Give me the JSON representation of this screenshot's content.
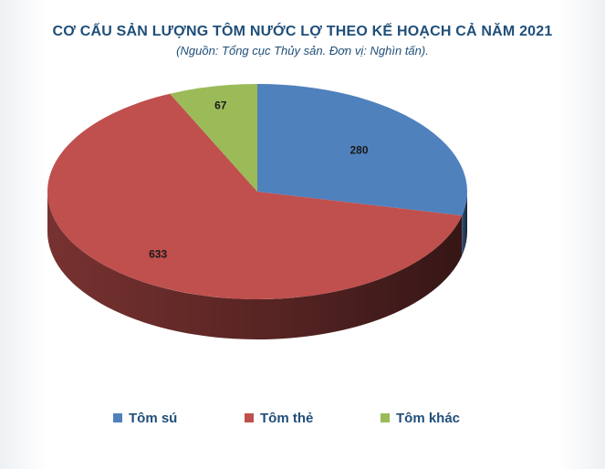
{
  "header": {
    "title": "CƠ CẤU SẢN LƯỢNG TÔM NƯỚC LỢ THEO KẾ HOẠCH CẢ NĂM 2021",
    "subtitle": "(Nguồn: Tổng cục Thủy sản. Đơn vị: Nghìn tấn)."
  },
  "chart_data": {
    "type": "pie",
    "title": "CƠ CẤU SẢN LƯỢNG TÔM NƯỚC LỢ THEO KẾ HOẠCH CẢ NĂM 2021",
    "subtitle": "(Nguồn: Tổng cục Thủy sản. Đơn vị: Nghìn tấn).",
    "legend_position": "bottom",
    "style": "3d",
    "categories": [
      "Tôm sú",
      "Tôm thẻ",
      "Tôm khác"
    ],
    "values": [
      280,
      633,
      67
    ],
    "data_labels": [
      "280",
      "633",
      "67"
    ],
    "colors": [
      "#4f81bd",
      "#c0504d",
      "#9bbb59"
    ]
  },
  "legend": {
    "items": [
      {
        "label": "Tôm sú",
        "color": "#4f81bd"
      },
      {
        "label": "Tôm thẻ",
        "color": "#c0504d"
      },
      {
        "label": "Tôm khác",
        "color": "#9bbb59"
      }
    ]
  }
}
